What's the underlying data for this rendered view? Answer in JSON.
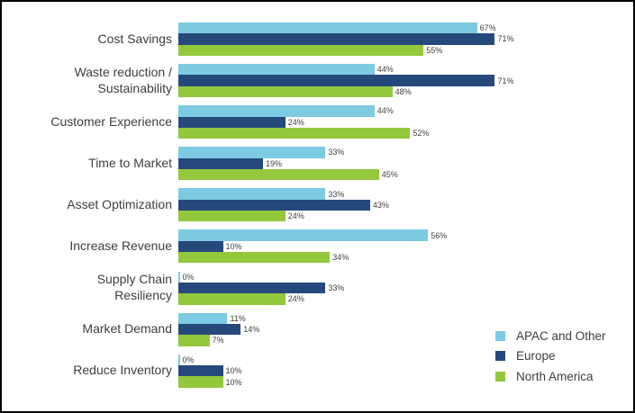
{
  "window": {
    "background_color": "#ffffff",
    "border_color": "#000000",
    "text_color": "#3e3e3e",
    "value_label_color": "#404040"
  },
  "chart_data": {
    "type": "bar",
    "orientation": "horizontal",
    "title": "",
    "xlabel": "",
    "ylabel": "",
    "xlim": [
      0,
      100
    ],
    "grid": false,
    "data_labels": true,
    "value_suffix": "%",
    "legend_position": "bottom-right",
    "categories": [
      {
        "lines": [
          "Cost Savings"
        ]
      },
      {
        "lines": [
          "Waste reduction /",
          "Sustainability"
        ]
      },
      {
        "lines": [
          "Customer Experience"
        ]
      },
      {
        "lines": [
          "Time to Market"
        ]
      },
      {
        "lines": [
          "Asset Optimization"
        ]
      },
      {
        "lines": [
          "Increase Revenue"
        ]
      },
      {
        "lines": [
          "Supply Chain",
          "Resiliency"
        ]
      },
      {
        "lines": [
          "Market Demand"
        ]
      },
      {
        "lines": [
          "Reduce Inventory"
        ]
      }
    ],
    "series": [
      {
        "name": "APAC and Other",
        "color": "#7dcae3",
        "values": [
          67,
          44,
          44,
          33,
          33,
          56,
          0,
          11,
          0
        ],
        "labels": [
          "67%",
          "44%",
          "44%",
          "33%",
          "33%",
          "56%",
          "0%",
          "11%",
          "0%"
        ]
      },
      {
        "name": "Europe",
        "color": "#26497b",
        "values": [
          71,
          71,
          24,
          19,
          43,
          10,
          33,
          14,
          10
        ],
        "labels": [
          "71%",
          "71%",
          "24%",
          "19%",
          "43%",
          "10%",
          "33%",
          "14%",
          "10%"
        ]
      },
      {
        "name": "North America",
        "color": "#93c83d",
        "values": [
          55,
          48,
          52,
          45,
          24,
          34,
          24,
          7,
          10
        ],
        "labels": [
          "55%",
          "48%",
          "52%",
          "45%",
          "24%",
          "34%",
          "24%",
          "7%",
          "10%"
        ]
      }
    ]
  }
}
